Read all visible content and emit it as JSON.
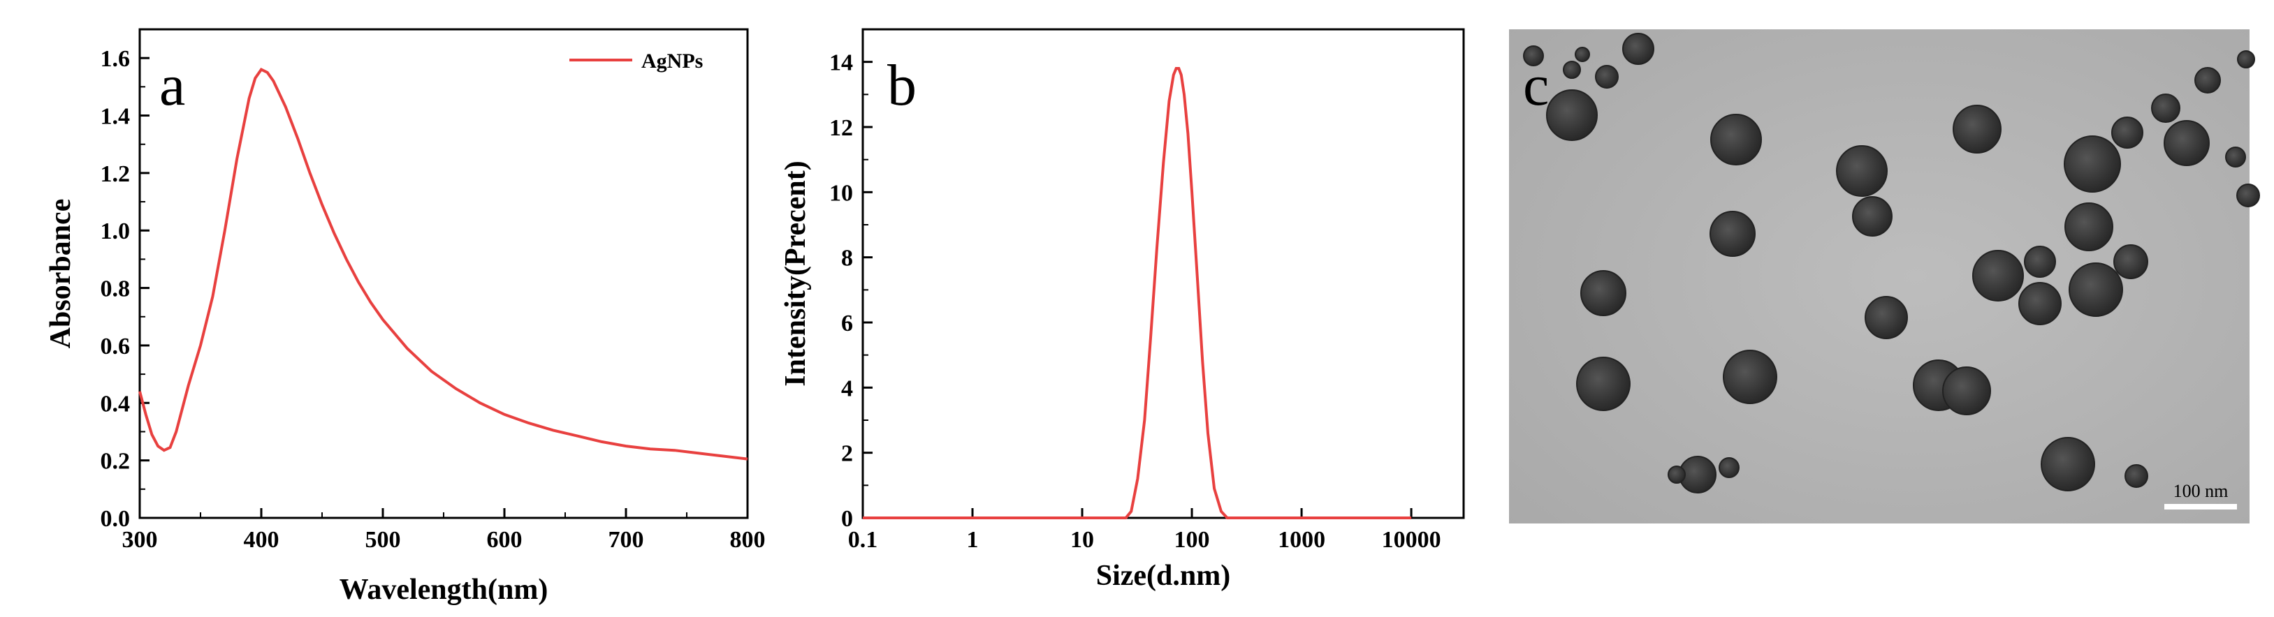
{
  "chart_data": [
    {
      "panel": "a",
      "type": "line",
      "xlabel": "Wavelength(nm)",
      "ylabel": "Absorbance",
      "xlim": [
        300,
        800
      ],
      "ylim": [
        0.0,
        1.7
      ],
      "x_ticks": [
        300,
        400,
        500,
        600,
        700,
        800
      ],
      "x_tick_labels": [
        "300",
        "400",
        "500",
        "600",
        "700",
        "800"
      ],
      "y_ticks": [
        0.0,
        0.2,
        0.4,
        0.6,
        0.8,
        1.0,
        1.2,
        1.4,
        1.6
      ],
      "y_tick_labels": [
        "0.0",
        "0.2",
        "0.4",
        "0.6",
        "0.8",
        "1.0",
        "1.2",
        "1.4",
        "1.6"
      ],
      "legend_position": "top-right",
      "grid": false,
      "color": "#e8403f",
      "series": [
        {
          "name": "AgNPs",
          "x": [
            300,
            305,
            310,
            315,
            320,
            325,
            330,
            340,
            350,
            360,
            370,
            380,
            390,
            395,
            400,
            405,
            410,
            420,
            430,
            440,
            450,
            460,
            470,
            480,
            490,
            500,
            520,
            540,
            560,
            580,
            600,
            620,
            640,
            660,
            680,
            700,
            720,
            740,
            760,
            780,
            800
          ],
          "y": [
            0.44,
            0.36,
            0.29,
            0.25,
            0.235,
            0.245,
            0.3,
            0.46,
            0.6,
            0.77,
            1.0,
            1.25,
            1.46,
            1.53,
            1.56,
            1.55,
            1.52,
            1.43,
            1.32,
            1.2,
            1.09,
            0.99,
            0.9,
            0.82,
            0.75,
            0.69,
            0.59,
            0.51,
            0.45,
            0.4,
            0.36,
            0.33,
            0.305,
            0.285,
            0.265,
            0.25,
            0.24,
            0.235,
            0.225,
            0.215,
            0.205
          ]
        }
      ]
    },
    {
      "panel": "b",
      "type": "line",
      "xlabel": "Size(d.nm)",
      "ylabel": "Intensity(Precent)",
      "x_scale": "log",
      "xlim": [
        0.1,
        30000
      ],
      "ylim": [
        0,
        15
      ],
      "x_ticks": [
        0.1,
        1,
        10,
        100,
        1000,
        10000
      ],
      "x_tick_labels": [
        "0.1",
        "1",
        "10",
        "100",
        "1000",
        "10000"
      ],
      "y_ticks": [
        0,
        2,
        4,
        6,
        8,
        10,
        12,
        14
      ],
      "y_tick_labels": [
        "0",
        "2",
        "4",
        "6",
        "8",
        "10",
        "12",
        "14"
      ],
      "grid": false,
      "color": "#e8403f",
      "series": [
        {
          "x": [
            0.1,
            1,
            10,
            25,
            28,
            32,
            37,
            42,
            48,
            55,
            62,
            68,
            72,
            76,
            80,
            85,
            92,
            100,
            112,
            125,
            140,
            160,
            185,
            210,
            1000,
            10000
          ],
          "y": [
            0,
            0,
            0,
            0,
            0.2,
            1.2,
            3.0,
            5.5,
            8.3,
            10.9,
            12.8,
            13.6,
            13.8,
            13.8,
            13.6,
            13.0,
            11.8,
            10.0,
            7.4,
            4.8,
            2.6,
            0.9,
            0.2,
            0,
            0,
            0
          ]
        }
      ]
    }
  ],
  "panels": {
    "a_label": "a",
    "b_label": "b",
    "c_label": "c"
  },
  "tem_image": {
    "scale_bar_label": "100 nm",
    "background_color": "#b3b3b3",
    "particle_color": "#3a3a3a"
  }
}
